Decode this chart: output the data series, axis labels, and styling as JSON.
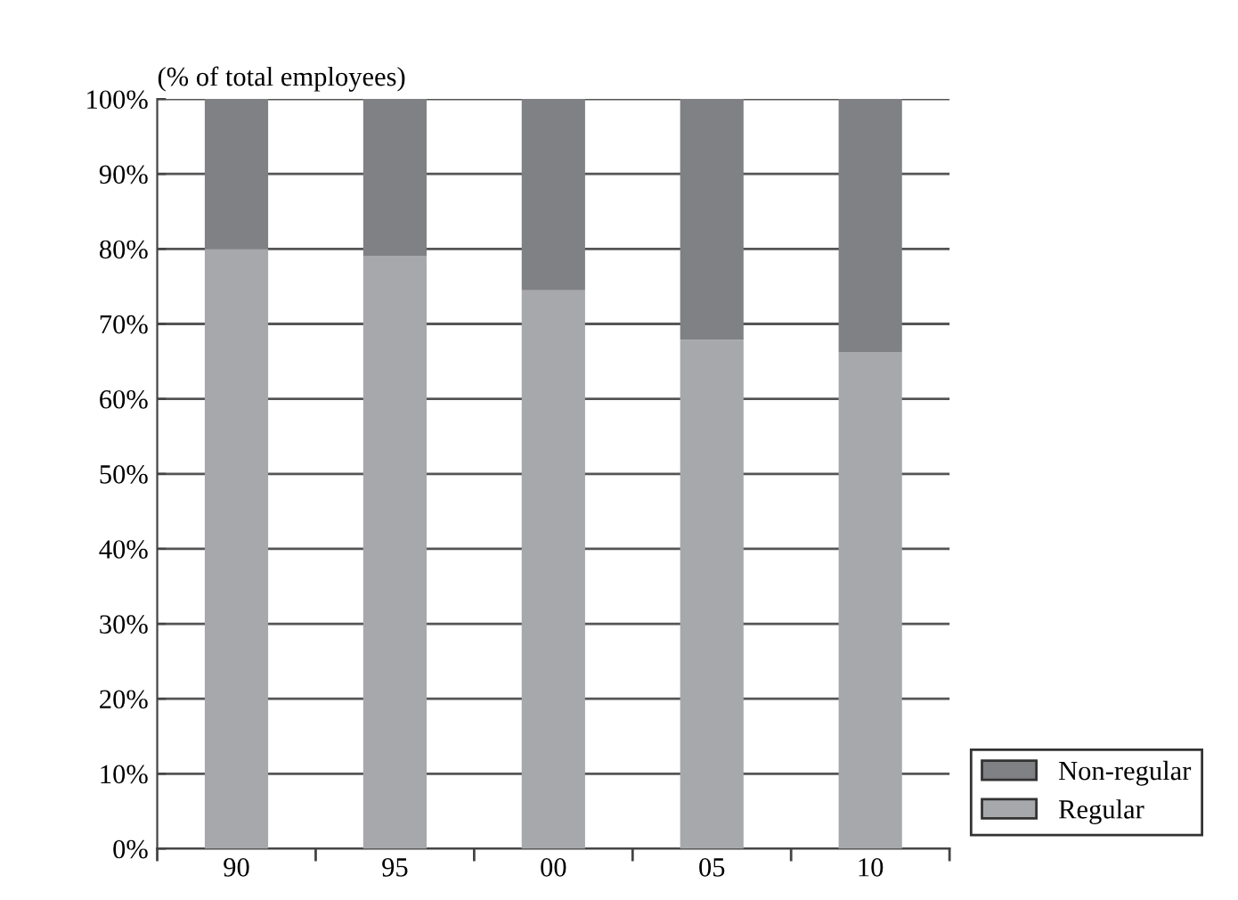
{
  "chart_data": {
    "type": "bar",
    "stacked": true,
    "ylabel": "(% of total employees)",
    "categories": [
      "90",
      "95",
      "00",
      "05",
      "10"
    ],
    "series": [
      {
        "name": "Regular",
        "color": "#a7a8ac",
        "values": [
          80.0,
          79.1,
          74.5,
          67.9,
          66.2
        ]
      },
      {
        "name": "Non-regular",
        "color": "#808185",
        "values": [
          20.0,
          20.9,
          25.5,
          32.1,
          33.8
        ]
      }
    ],
    "ylim": [
      0,
      100
    ],
    "yticks": [
      {
        "value": 0,
        "label": "0%"
      },
      {
        "value": 10,
        "label": "10%"
      },
      {
        "value": 20,
        "label": "20%"
      },
      {
        "value": 30,
        "label": "30%"
      },
      {
        "value": 40,
        "label": "40%"
      },
      {
        "value": 50,
        "label": "50%"
      },
      {
        "value": 60,
        "label": "60%"
      },
      {
        "value": 70,
        "label": "70%"
      },
      {
        "value": 80,
        "label": "80%"
      },
      {
        "value": 90,
        "label": "90%"
      },
      {
        "value": 100,
        "label": "100%"
      }
    ],
    "grid": "y",
    "legend": "bottom right"
  }
}
